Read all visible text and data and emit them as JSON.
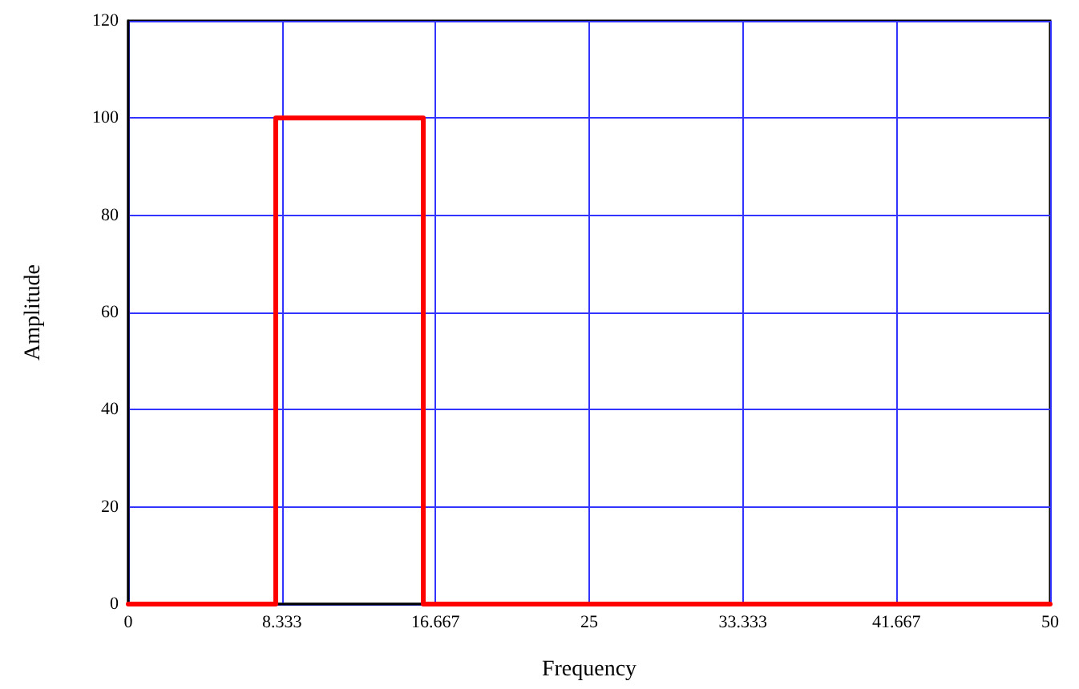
{
  "chart_data": {
    "type": "line",
    "xlabel": "Frequency",
    "ylabel": "Amplitude",
    "x": [
      0,
      8,
      8,
      16,
      16,
      50
    ],
    "series": [
      {
        "color": "#ff0000",
        "values": [
          0,
          0,
          100,
          100,
          0,
          0
        ]
      }
    ],
    "xlim": [
      0,
      50
    ],
    "xticks": [
      0,
      8.333,
      16.667,
      25,
      33.333,
      41.667,
      50
    ],
    "ylim": [
      0,
      120
    ],
    "yticks": [
      0,
      20,
      40,
      60,
      80,
      100,
      120
    ],
    "grid": true,
    "marker": "none",
    "line_style": "solid"
  }
}
